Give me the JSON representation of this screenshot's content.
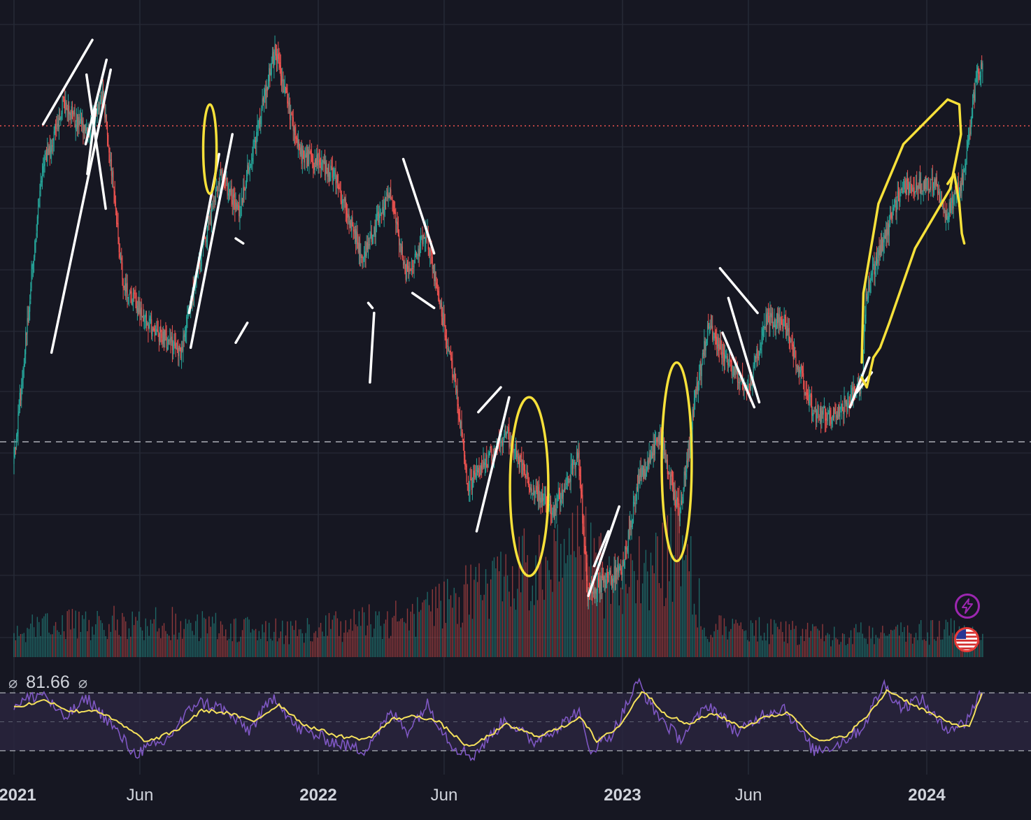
{
  "chart_data": [
    {
      "type": "candlestick",
      "panel": "price",
      "x_range": [
        "2021-01-01",
        "2024-03-31"
      ],
      "price_profile": [
        [
          "2021-01-01",
          0.14
        ],
        [
          "2021-02-03",
          0.72
        ],
        [
          "2021-03-01",
          0.86
        ],
        [
          "2021-03-30",
          0.8
        ],
        [
          "2021-04-18",
          0.88
        ],
        [
          "2021-05-12",
          0.5
        ],
        [
          "2021-06-10",
          0.42
        ],
        [
          "2021-07-20",
          0.36
        ],
        [
          "2021-08-14",
          0.56
        ],
        [
          "2021-09-07",
          0.72
        ],
        [
          "2021-09-27",
          0.64
        ],
        [
          "2021-11-10",
          0.97
        ],
        [
          "2021-12-10",
          0.76
        ],
        [
          "2022-01-20",
          0.72
        ],
        [
          "2022-02-24",
          0.55
        ],
        [
          "2022-03-28",
          0.69
        ],
        [
          "2022-04-16",
          0.52
        ],
        [
          "2022-05-11",
          0.6
        ],
        [
          "2022-06-14",
          0.3
        ],
        [
          "2022-06-30",
          0.09
        ],
        [
          "2022-08-14",
          0.2
        ],
        [
          "2022-09-10",
          0.1
        ],
        [
          "2022-10-10",
          0.04
        ],
        [
          "2022-11-09",
          0.15
        ],
        [
          "2022-11-20",
          -0.12
        ],
        [
          "2022-12-31",
          -0.08
        ],
        [
          "2023-01-20",
          0.1
        ],
        [
          "2023-02-16",
          0.19
        ],
        [
          "2023-03-10",
          0.03
        ],
        [
          "2023-03-30",
          0.28
        ],
        [
          "2023-04-14",
          0.41
        ],
        [
          "2023-05-31",
          0.28
        ],
        [
          "2023-06-23",
          0.43
        ],
        [
          "2023-07-14",
          0.42
        ],
        [
          "2023-08-18",
          0.24
        ],
        [
          "2023-09-11",
          0.23
        ],
        [
          "2023-10-16",
          0.3
        ],
        [
          "2023-10-20",
          0.48
        ],
        [
          "2023-12-01",
          0.69
        ],
        [
          "2024-01-11",
          0.7
        ],
        [
          "2024-01-23",
          0.63
        ],
        [
          "2024-02-14",
          0.71
        ],
        [
          "2024-03-01",
          0.92
        ],
        [
          "2024-03-08",
          0.94
        ]
      ],
      "last_price_line": true,
      "support_line": true
    },
    {
      "type": "bar",
      "panel": "volume",
      "volume_profile": [
        [
          "2021-01-01",
          0.22
        ],
        [
          "2021-05-15",
          0.3
        ],
        [
          "2021-12-01",
          0.2
        ],
        [
          "2022-05-10",
          0.35
        ],
        [
          "2022-06-20",
          0.5
        ],
        [
          "2022-08-10",
          0.6
        ],
        [
          "2022-11-09",
          0.95
        ],
        [
          "2022-12-20",
          0.55
        ],
        [
          "2023-02-15",
          0.75
        ],
        [
          "2023-03-12",
          1.0
        ],
        [
          "2023-04-10",
          0.25
        ],
        [
          "2023-09-01",
          0.18
        ],
        [
          "2024-03-08",
          0.22
        ]
      ]
    },
    {
      "type": "line",
      "panel": "rsi",
      "value_label": "81.66",
      "null_icon": "⌀",
      "bands": [
        30,
        70
      ],
      "ylim": [
        15,
        85
      ],
      "series": [
        {
          "color": "#7e57c2",
          "values": [
            [
              "2021-01-01",
              62
            ],
            [
              "2021-02-05",
              70
            ],
            [
              "2021-03-01",
              52
            ],
            [
              "2021-03-30",
              66
            ],
            [
              "2021-04-25",
              50
            ],
            [
              "2021-05-25",
              28
            ],
            [
              "2021-07-01",
              36
            ],
            [
              "2021-08-08",
              64
            ],
            [
              "2021-09-05",
              60
            ],
            [
              "2021-10-10",
              44
            ],
            [
              "2021-11-10",
              68
            ],
            [
              "2021-12-05",
              46
            ],
            [
              "2022-01-20",
              36
            ],
            [
              "2022-02-24",
              30
            ],
            [
              "2022-03-30",
              56
            ],
            [
              "2022-04-18",
              44
            ],
            [
              "2022-05-12",
              62
            ],
            [
              "2022-06-10",
              34
            ],
            [
              "2022-07-05",
              26
            ],
            [
              "2022-08-14",
              52
            ],
            [
              "2022-09-15",
              36
            ],
            [
              "2022-10-20",
              48
            ],
            [
              "2022-11-09",
              58
            ],
            [
              "2022-11-22",
              30
            ],
            [
              "2022-12-20",
              42
            ],
            [
              "2023-01-20",
              78
            ],
            [
              "2023-02-05",
              60
            ],
            [
              "2023-03-10",
              38
            ],
            [
              "2023-04-15",
              62
            ],
            [
              "2023-05-20",
              42
            ],
            [
              "2023-06-20",
              56
            ],
            [
              "2023-07-14",
              60
            ],
            [
              "2023-08-18",
              30
            ],
            [
              "2023-09-15",
              34
            ],
            [
              "2023-10-16",
              46
            ],
            [
              "2023-11-10",
              76
            ],
            [
              "2023-12-01",
              60
            ],
            [
              "2023-12-25",
              66
            ],
            [
              "2024-01-20",
              46
            ],
            [
              "2024-02-14",
              48
            ],
            [
              "2024-03-08",
              72
            ]
          ]
        },
        {
          "color": "#f5e15c",
          "values": [
            [
              "2021-01-01",
              60
            ],
            [
              "2021-02-10",
              65
            ],
            [
              "2021-03-10",
              57
            ],
            [
              "2021-04-10",
              58
            ],
            [
              "2021-05-10",
              48
            ],
            [
              "2021-06-10",
              36
            ],
            [
              "2021-07-15",
              44
            ],
            [
              "2021-08-15",
              58
            ],
            [
              "2021-09-15",
              56
            ],
            [
              "2021-10-15",
              50
            ],
            [
              "2021-11-15",
              62
            ],
            [
              "2021-12-15",
              48
            ],
            [
              "2022-01-25",
              40
            ],
            [
              "2022-03-01",
              38
            ],
            [
              "2022-04-01",
              52
            ],
            [
              "2022-05-01",
              54
            ],
            [
              "2022-05-25",
              50
            ],
            [
              "2022-07-01",
              32
            ],
            [
              "2022-08-15",
              48
            ],
            [
              "2022-09-20",
              40
            ],
            [
              "2022-10-20",
              46
            ],
            [
              "2022-11-12",
              54
            ],
            [
              "2022-12-01",
              36
            ],
            [
              "2022-12-30",
              48
            ],
            [
              "2023-01-25",
              72
            ],
            [
              "2023-02-20",
              56
            ],
            [
              "2023-03-20",
              48
            ],
            [
              "2023-04-20",
              56
            ],
            [
              "2023-05-25",
              46
            ],
            [
              "2023-06-25",
              54
            ],
            [
              "2023-07-20",
              56
            ],
            [
              "2023-08-25",
              36
            ],
            [
              "2023-09-25",
              40
            ],
            [
              "2023-10-25",
              56
            ],
            [
              "2023-11-15",
              72
            ],
            [
              "2023-12-15",
              62
            ],
            [
              "2024-01-25",
              50
            ],
            [
              "2024-02-20",
              46
            ],
            [
              "2024-03-08",
              70
            ]
          ]
        }
      ]
    }
  ],
  "x_axis": {
    "ticks": [
      {
        "label": "2021",
        "date": "2021-01-01",
        "year": true
      },
      {
        "label": "Jun",
        "date": "2021-06-01",
        "year": false
      },
      {
        "label": "2022",
        "date": "2022-01-01",
        "year": true
      },
      {
        "label": "Jun",
        "date": "2022-06-01",
        "year": false
      },
      {
        "label": "2023",
        "date": "2023-01-01",
        "year": true
      },
      {
        "label": "Jun",
        "date": "2023-06-01",
        "year": false
      },
      {
        "label": "2024",
        "date": "2024-01-01",
        "year": true
      }
    ]
  },
  "colors": {
    "background": "#161722",
    "grid": "#262a36",
    "up": "#26a69a",
    "down": "#ef5350",
    "last_price_line": "#ef5350",
    "support_line": "#d1d4dc",
    "annotation_white": "#ffffff",
    "annotation_yellow": "#f7e13a",
    "rsi_band_fill": "#2a2540",
    "text": "#d1d4dc"
  },
  "icons": {
    "alert": "lightning-icon",
    "region": "us-flag-icon"
  },
  "annotations": {
    "white_segments": [
      [
        "2021-02-05",
        0.82,
        "2021-04-05",
        0.99
      ],
      [
        "2021-02-15",
        0.36,
        "2021-04-27",
        0.93
      ],
      [
        "2021-03-28",
        0.78,
        "2021-04-22",
        0.95
      ],
      [
        "2021-03-29",
        0.92,
        "2021-04-21",
        0.65
      ],
      [
        "2021-03-30",
        0.72,
        "2021-04-09",
        0.85
      ],
      [
        "2021-08-01",
        0.37,
        "2021-09-20",
        0.8
      ],
      [
        "2021-07-30",
        0.44,
        "2021-09-04",
        0.76
      ],
      [
        "2021-09-24",
        0.59,
        "2021-10-03",
        0.58
      ],
      [
        "2021-09-24",
        0.38,
        "2021-10-08",
        0.42
      ],
      [
        "2022-03-04",
        0.3,
        "2022-03-09",
        0.44
      ],
      [
        "2022-03-02",
        0.46,
        "2022-03-07",
        0.45
      ],
      [
        "2022-04-13",
        0.75,
        "2022-05-20",
        0.56
      ],
      [
        "2022-04-24",
        0.48,
        "2022-05-20",
        0.45
      ],
      [
        "2022-07-12",
        0.24,
        "2022-08-08",
        0.29
      ],
      [
        "2022-07-10",
        0.0,
        "2022-08-18",
        0.27
      ],
      [
        "2022-11-21",
        -0.13,
        "2022-12-28",
        0.05
      ],
      [
        "2022-11-28",
        -0.07,
        "2022-12-15",
        0.0
      ],
      [
        "2023-04-28",
        0.53,
        "2023-06-12",
        0.44
      ],
      [
        "2023-05-01",
        0.4,
        "2023-06-08",
        0.25
      ],
      [
        "2023-05-08",
        0.47,
        "2023-06-14",
        0.26
      ],
      [
        "2023-10-01",
        0.25,
        "2023-10-24",
        0.35
      ],
      [
        "2023-10-09",
        0.28,
        "2023-10-27",
        0.32
      ]
    ],
    "yellow_loops": [
      {
        "date": "2021-08-24",
        "center": 0.77,
        "rx_days": 8,
        "ry": 0.09
      },
      {
        "date": "2022-09-11",
        "center": 0.09,
        "rx_days": 23,
        "ry": 0.18
      },
      {
        "date": "2023-03-07",
        "center": 0.14,
        "rx_days": 18,
        "ry": 0.2
      }
    ],
    "yellow_strokes": [
      [
        [
          "2023-10-15",
          0.34
        ],
        [
          "2023-10-17",
          0.48
        ],
        [
          "2023-11-04",
          0.66
        ],
        [
          "2023-12-04",
          0.78
        ],
        [
          "2024-01-26",
          0.87
        ],
        [
          "2024-02-09",
          0.86
        ],
        [
          "2024-02-11",
          0.8
        ],
        [
          "2024-01-29",
          0.69
        ],
        [
          "2023-12-18",
          0.57
        ],
        [
          "2023-11-17",
          0.42
        ],
        [
          "2023-11-06",
          0.37
        ],
        [
          "2023-10-29",
          0.35
        ],
        [
          "2023-10-21",
          0.29
        ],
        [
          "2023-10-15",
          0.31
        ]
      ],
      [
        [
          "2024-01-26",
          0.7
        ],
        [
          "2024-02-03",
          0.72
        ],
        [
          "2024-02-09",
          0.66
        ],
        [
          "2024-02-12",
          0.6
        ],
        [
          "2024-02-15",
          0.58
        ]
      ]
    ]
  }
}
